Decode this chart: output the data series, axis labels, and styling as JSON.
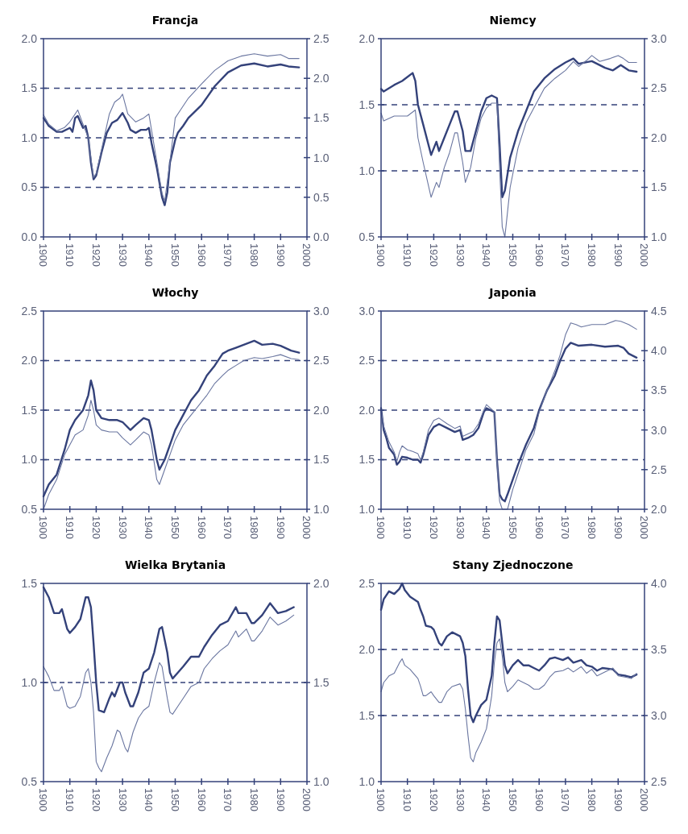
{
  "chart_data": [
    {
      "type": "line",
      "title": "Francja",
      "xlim": [
        1900,
        2000
      ],
      "xticks": [
        1900,
        1910,
        1920,
        1930,
        1940,
        1950,
        1960,
        1970,
        1980,
        1990,
        2000
      ],
      "ylim": [
        0,
        2
      ],
      "yticks": [
        {
          "value": 0,
          "label": "0.0"
        },
        0.5,
        {
          "value": 1,
          "label": "1.0"
        },
        1.5,
        {
          "value": 2,
          "label": "2.0"
        }
      ],
      "y2lim": [
        0,
        2.5
      ],
      "y2ticks": [
        {
          "value": 0,
          "label": "0.0"
        },
        0.5,
        {
          "value": 1,
          "label": "1.0"
        },
        1.5,
        {
          "value": 2,
          "label": "2.0"
        },
        2.5
      ],
      "grid": "y",
      "series": [
        {
          "color": "#34427a",
          "x": [
            1900,
            1902,
            1905,
            1907,
            1910,
            1911,
            1912,
            1913,
            1915,
            1916,
            1917,
            1918,
            1919,
            1920,
            1922,
            1924,
            1926,
            1928,
            1930,
            1932,
            1933,
            1935,
            1937,
            1939,
            1940,
            1941,
            1943,
            1945,
            1946,
            1947,
            1948,
            1950,
            1951,
            1953,
            1955,
            1960,
            1965,
            1970,
            1975,
            1980,
            1985,
            1990,
            1993,
            1997
          ],
          "values": [
            1.2,
            1.12,
            1.06,
            1.06,
            1.1,
            1.06,
            1.2,
            1.22,
            1.1,
            1.12,
            1,
            0.75,
            0.58,
            0.62,
            0.85,
            1.05,
            1.15,
            1.18,
            1.25,
            1.15,
            1.08,
            1.05,
            1.08,
            1.08,
            1.1,
            0.95,
            0.7,
            0.4,
            0.32,
            0.45,
            0.75,
            0.98,
            1.05,
            1.12,
            1.2,
            1.33,
            1.52,
            1.66,
            1.73,
            1.75,
            1.72,
            1.74,
            1.72,
            1.71
          ]
        },
        {
          "color": "#6a76a0",
          "axis": "y2",
          "x": [
            1900,
            1902,
            1905,
            1908,
            1910,
            1912,
            1913,
            1915,
            1917,
            1919,
            1920,
            1922,
            1925,
            1927,
            1929,
            1930,
            1932,
            1935,
            1938,
            1940,
            1941,
            1943,
            1945,
            1946,
            1948,
            1950,
            1952,
            1955,
            1960,
            1965,
            1970,
            1975,
            1980,
            1985,
            1990,
            1993,
            1997
          ],
          "values": [
            1.54,
            1.42,
            1.34,
            1.38,
            1.45,
            1.55,
            1.6,
            1.42,
            1.25,
            0.75,
            0.8,
            1.1,
            1.55,
            1.7,
            1.75,
            1.8,
            1.55,
            1.45,
            1.5,
            1.55,
            1.35,
            0.95,
            0.55,
            0.45,
            0.95,
            1.5,
            1.6,
            1.75,
            1.93,
            2.1,
            2.22,
            2.28,
            2.31,
            2.28,
            2.3,
            2.25,
            2.25
          ]
        }
      ]
    },
    {
      "type": "line",
      "title": "Niemcy",
      "xlim": [
        1900,
        2000
      ],
      "xticks": [
        1900,
        1910,
        1920,
        1930,
        1940,
        1950,
        1960,
        1970,
        1980,
        1990,
        2000
      ],
      "ylim": [
        0.5,
        2
      ],
      "yticks": [
        0.5,
        {
          "value": 1,
          "label": "1.0"
        },
        1.5,
        {
          "value": 2,
          "label": "2.0"
        }
      ],
      "y2lim": [
        1,
        3
      ],
      "y2ticks": [
        {
          "value": 1,
          "label": "1.0"
        },
        1.5,
        {
          "value": 2,
          "label": "2.0"
        },
        2.5,
        {
          "value": 3,
          "label": "3.0"
        }
      ],
      "grid": "y",
      "series": [
        {
          "color": "#34427a",
          "x": [
            1900,
            1901,
            1905,
            1908,
            1912,
            1913,
            1914,
            1916,
            1919,
            1921,
            1922,
            1924,
            1926,
            1928,
            1929,
            1931,
            1932,
            1934,
            1936,
            1938,
            1940,
            1942,
            1944,
            1945,
            1946,
            1947,
            1949,
            1952,
            1955,
            1958,
            1962,
            1966,
            1970,
            1973,
            1975,
            1980,
            1985,
            1988,
            1991,
            1994,
            1997
          ],
          "values": [
            1.62,
            1.6,
            1.65,
            1.68,
            1.74,
            1.68,
            1.5,
            1.35,
            1.12,
            1.22,
            1.15,
            1.25,
            1.35,
            1.45,
            1.45,
            1.3,
            1.15,
            1.15,
            1.3,
            1.45,
            1.55,
            1.57,
            1.55,
            1.2,
            0.8,
            0.85,
            1.1,
            1.3,
            1.45,
            1.6,
            1.7,
            1.77,
            1.82,
            1.85,
            1.81,
            1.83,
            1.78,
            1.76,
            1.8,
            1.76,
            1.75
          ]
        },
        {
          "color": "#6a76a0",
          "axis": "y2",
          "x": [
            1900,
            1901,
            1905,
            1910,
            1913,
            1914,
            1916,
            1919,
            1921,
            1922,
            1924,
            1926,
            1928,
            1929,
            1931,
            1932,
            1934,
            1936,
            1938,
            1940,
            1942,
            1944,
            1945,
            1946,
            1947,
            1949,
            1952,
            1955,
            1958,
            1962,
            1966,
            1970,
            1973,
            1975,
            1978,
            1980,
            1983,
            1987,
            1990,
            1992,
            1994,
            1997
          ],
          "values": [
            2.25,
            2.17,
            2.22,
            2.22,
            2.28,
            2,
            1.75,
            1.4,
            1.55,
            1.5,
            1.7,
            1.85,
            2.05,
            2.05,
            1.75,
            1.55,
            1.7,
            2,
            2.2,
            2.3,
            2.35,
            2.35,
            1.7,
            1.1,
            1,
            1.5,
            1.9,
            2.15,
            2.3,
            2.5,
            2.6,
            2.68,
            2.77,
            2.72,
            2.78,
            2.83,
            2.77,
            2.8,
            2.83,
            2.8,
            2.76,
            2.76
          ]
        }
      ]
    },
    {
      "type": "line",
      "title": "Włochy",
      "xlim": [
        1900,
        2000
      ],
      "xticks": [
        1900,
        1910,
        1920,
        1930,
        1940,
        1950,
        1960,
        1970,
        1980,
        1990,
        2000
      ],
      "ylim": [
        0.5,
        2.5
      ],
      "yticks": [
        0.5,
        {
          "value": 1,
          "label": "1.0"
        },
        1.5,
        {
          "value": 2,
          "label": "2.0"
        },
        2.5
      ],
      "y2lim": [
        1,
        3
      ],
      "y2ticks": [
        {
          "value": 1,
          "label": "1.0"
        },
        1.5,
        {
          "value": 2,
          "label": "2.0"
        },
        2.5,
        {
          "value": 3,
          "label": "3.0"
        }
      ],
      "grid": "y",
      "series": [
        {
          "color": "#34427a",
          "x": [
            1900,
            1902,
            1905,
            1908,
            1910,
            1912,
            1915,
            1917,
            1918,
            1919,
            1920,
            1922,
            1925,
            1928,
            1930,
            1933,
            1935,
            1938,
            1940,
            1941,
            1943,
            1944,
            1946,
            1948,
            1950,
            1953,
            1956,
            1959,
            1962,
            1965,
            1968,
            1970,
            1973,
            1976,
            1980,
            1983,
            1987,
            1990,
            1994,
            1997
          ],
          "values": [
            0.63,
            0.75,
            0.85,
            1.1,
            1.3,
            1.4,
            1.5,
            1.65,
            1.8,
            1.7,
            1.5,
            1.42,
            1.4,
            1.4,
            1.38,
            1.3,
            1.35,
            1.42,
            1.4,
            1.3,
            1,
            0.9,
            1,
            1.15,
            1.3,
            1.45,
            1.6,
            1.7,
            1.85,
            1.95,
            2.07,
            2.1,
            2.13,
            2.16,
            2.2,
            2.16,
            2.17,
            2.15,
            2.1,
            2.08
          ]
        },
        {
          "color": "#6a76a0",
          "axis": "y2",
          "x": [
            1900,
            1902,
            1905,
            1908,
            1910,
            1912,
            1915,
            1917,
            1918,
            1919,
            1920,
            1922,
            1925,
            1928,
            1930,
            1933,
            1935,
            1938,
            1940,
            1941,
            1943,
            1944,
            1946,
            1948,
            1950,
            1953,
            1956,
            1959,
            1962,
            1965,
            1968,
            1970,
            1973,
            1976,
            1980,
            1983,
            1987,
            1990,
            1994,
            1997
          ],
          "values": [
            1,
            1.15,
            1.3,
            1.55,
            1.65,
            1.75,
            1.8,
            1.95,
            2.1,
            2,
            1.85,
            1.8,
            1.78,
            1.78,
            1.72,
            1.65,
            1.7,
            1.78,
            1.75,
            1.65,
            1.3,
            1.25,
            1.4,
            1.55,
            1.7,
            1.85,
            1.95,
            2.05,
            2.15,
            2.27,
            2.35,
            2.4,
            2.45,
            2.5,
            2.53,
            2.52,
            2.54,
            2.56,
            2.52,
            2.51
          ]
        }
      ]
    },
    {
      "type": "line",
      "title": "Japonia",
      "xlim": [
        1900,
        2000
      ],
      "xticks": [
        1900,
        1910,
        1920,
        1930,
        1940,
        1950,
        1960,
        1970,
        1980,
        1990,
        2000
      ],
      "ylim": [
        1,
        3
      ],
      "yticks": [
        {
          "value": 1,
          "label": "1.0"
        },
        1.5,
        {
          "value": 2,
          "label": "2.0"
        },
        2.5,
        {
          "value": 3,
          "label": "3.0"
        }
      ],
      "y2lim": [
        2,
        4.5
      ],
      "y2ticks": [
        {
          "value": 2,
          "label": "2.0"
        },
        2.5,
        {
          "value": 3,
          "label": "3.0"
        },
        3.5,
        {
          "value": 4,
          "label": "4.0"
        },
        4.5
      ],
      "grid": "y",
      "series": [
        {
          "color": "#34427a",
          "x": [
            1900,
            1901,
            1902,
            1903,
            1905,
            1906,
            1907,
            1908,
            1910,
            1912,
            1914,
            1915,
            1916,
            1918,
            1920,
            1922,
            1925,
            1928,
            1930,
            1931,
            1933,
            1935,
            1937,
            1939,
            1940,
            1943,
            1944,
            1945,
            1946,
            1947,
            1948,
            1950,
            1952,
            1955,
            1958,
            1960,
            1963,
            1966,
            1968,
            1970,
            1972,
            1975,
            1980,
            1985,
            1990,
            1992,
            1994,
            1997
          ],
          "values": [
            2.02,
            1.8,
            1.72,
            1.62,
            1.55,
            1.45,
            1.48,
            1.53,
            1.52,
            1.5,
            1.5,
            1.47,
            1.55,
            1.75,
            1.83,
            1.86,
            1.82,
            1.78,
            1.8,
            1.7,
            1.72,
            1.75,
            1.82,
            1.98,
            2.02,
            1.98,
            1.5,
            1.15,
            1.1,
            1.08,
            1.15,
            1.3,
            1.45,
            1.65,
            1.82,
            2,
            2.2,
            2.35,
            2.5,
            2.62,
            2.68,
            2.65,
            2.66,
            2.64,
            2.65,
            2.63,
            2.57,
            2.53
          ]
        },
        {
          "color": "#6a76a0",
          "axis": "y2",
          "x": [
            1900,
            1901,
            1903,
            1905,
            1906,
            1907,
            1908,
            1910,
            1912,
            1914,
            1915,
            1916,
            1918,
            1920,
            1922,
            1925,
            1928,
            1930,
            1931,
            1933,
            1935,
            1937,
            1939,
            1940,
            1943,
            1944,
            1945,
            1946,
            1948,
            1950,
            1952,
            1955,
            1958,
            1960,
            1963,
            1966,
            1968,
            1970,
            1972,
            1974,
            1976,
            1980,
            1985,
            1989,
            1991,
            1994,
            1997
          ],
          "values": [
            3.25,
            3.05,
            2.85,
            2.72,
            2.6,
            2.72,
            2.8,
            2.75,
            2.73,
            2.7,
            2.62,
            2.72,
            3,
            3.12,
            3.15,
            3.08,
            3.02,
            3.05,
            2.92,
            2.95,
            2.98,
            3.08,
            3.25,
            3.32,
            3.23,
            2.6,
            2.1,
            2,
            2,
            2.25,
            2.45,
            2.75,
            2.95,
            3.22,
            3.5,
            3.75,
            3.95,
            4.2,
            4.35,
            4.33,
            4.3,
            4.33,
            4.33,
            4.38,
            4.37,
            4.33,
            4.27
          ]
        }
      ]
    },
    {
      "type": "line",
      "title": "Wielka Brytania",
      "xlim": [
        1900,
        2000
      ],
      "xticks": [
        1900,
        1910,
        1920,
        1930,
        1940,
        1950,
        1960,
        1970,
        1980,
        1990,
        2000
      ],
      "ylim": [
        0.5,
        1.5
      ],
      "yticks": [
        0.5,
        {
          "value": 1,
          "label": "1.0"
        },
        1.5
      ],
      "y2lim": [
        1,
        2
      ],
      "y2ticks": [
        {
          "value": 1,
          "label": "1.0"
        },
        1.5,
        {
          "value": 2,
          "label": "2.0"
        }
      ],
      "ref_lines": [
        {
          "axis": "y",
          "value": 1,
          "line_style": "dashed"
        }
      ],
      "series": [
        {
          "color": "#34427a",
          "x": [
            1900,
            1902,
            1904,
            1906,
            1907,
            1909,
            1910,
            1912,
            1914,
            1916,
            1917,
            1918,
            1919,
            1920,
            1921,
            1923,
            1925,
            1926,
            1927,
            1929,
            1930,
            1931,
            1933,
            1934,
            1936,
            1938,
            1940,
            1942,
            1944,
            1945,
            1947,
            1948,
            1949,
            1951,
            1953,
            1956,
            1959,
            1961,
            1964,
            1967,
            1970,
            1973,
            1974,
            1977,
            1979,
            1980,
            1983,
            1986,
            1989,
            1992,
            1995
          ],
          "values": [
            1.48,
            1.43,
            1.35,
            1.35,
            1.37,
            1.27,
            1.25,
            1.28,
            1.32,
            1.43,
            1.43,
            1.38,
            1.2,
            1,
            0.86,
            0.85,
            0.92,
            0.95,
            0.93,
            1,
            1,
            0.95,
            0.88,
            0.88,
            0.95,
            1.05,
            1.07,
            1.15,
            1.27,
            1.28,
            1.15,
            1.05,
            1.02,
            1.05,
            1.08,
            1.13,
            1.13,
            1.18,
            1.24,
            1.29,
            1.31,
            1.38,
            1.35,
            1.35,
            1.3,
            1.3,
            1.34,
            1.4,
            1.35,
            1.36,
            1.38
          ]
        },
        {
          "color": "#6a76a0",
          "axis": "y2",
          "x": [
            1900,
            1902,
            1904,
            1906,
            1907,
            1909,
            1910,
            1912,
            1914,
            1916,
            1917,
            1918,
            1919,
            1920,
            1921,
            1922,
            1924,
            1926,
            1928,
            1929,
            1931,
            1932,
            1934,
            1936,
            1938,
            1940,
            1942,
            1944,
            1945,
            1947,
            1948,
            1949,
            1951,
            1953,
            1956,
            1959,
            1961,
            1964,
            1967,
            1970,
            1973,
            1974,
            1977,
            1979,
            1980,
            1983,
            1986,
            1989,
            1992,
            1995
          ],
          "values": [
            1.58,
            1.53,
            1.46,
            1.46,
            1.48,
            1.38,
            1.37,
            1.38,
            1.43,
            1.55,
            1.57,
            1.5,
            1.35,
            1.1,
            1.07,
            1.05,
            1.12,
            1.18,
            1.26,
            1.25,
            1.17,
            1.15,
            1.25,
            1.32,
            1.36,
            1.38,
            1.5,
            1.6,
            1.58,
            1.42,
            1.35,
            1.34,
            1.38,
            1.42,
            1.48,
            1.5,
            1.57,
            1.62,
            1.66,
            1.69,
            1.76,
            1.73,
            1.77,
            1.71,
            1.71,
            1.76,
            1.83,
            1.79,
            1.81,
            1.84
          ]
        }
      ]
    },
    {
      "type": "line",
      "title": "Stany Zjednoczone",
      "xlim": [
        1900,
        2000
      ],
      "xticks": [
        1900,
        1910,
        1920,
        1930,
        1940,
        1950,
        1960,
        1970,
        1980,
        1990,
        2000
      ],
      "ylim": [
        1,
        2.5
      ],
      "yticks": [
        {
          "value": 1,
          "label": "1.0"
        },
        1.5,
        {
          "value": 2,
          "label": "2.0"
        },
        2.5
      ],
      "y2lim": [
        2.5,
        4
      ],
      "y2ticks": [
        2.5,
        {
          "value": 3,
          "label": "3.0"
        },
        3.5,
        {
          "value": 4,
          "label": "4.0"
        }
      ],
      "grid": "y",
      "series": [
        {
          "color": "#34427a",
          "x": [
            1900,
            1901,
            1903,
            1905,
            1907,
            1908,
            1909,
            1911,
            1914,
            1915,
            1916,
            1917,
            1919,
            1920,
            1922,
            1923,
            1925,
            1927,
            1930,
            1931,
            1932,
            1933,
            1934,
            1935,
            1936,
            1938,
            1940,
            1942,
            1943,
            1944,
            1945,
            1946,
            1947,
            1948,
            1950,
            1952,
            1954,
            1956,
            1958,
            1960,
            1962,
            1964,
            1966,
            1969,
            1971,
            1973,
            1976,
            1978,
            1980,
            1982,
            1984,
            1988,
            1990,
            1993,
            1995,
            1997
          ],
          "values": [
            2.3,
            2.38,
            2.44,
            2.42,
            2.46,
            2.5,
            2.45,
            2.4,
            2.36,
            2.3,
            2.25,
            2.18,
            2.17,
            2.15,
            2.05,
            2.03,
            2.1,
            2.13,
            2.1,
            2.05,
            1.95,
            1.7,
            1.5,
            1.45,
            1.5,
            1.58,
            1.62,
            1.8,
            2.05,
            2.25,
            2.22,
            2.05,
            1.88,
            1.82,
            1.88,
            1.92,
            1.88,
            1.88,
            1.86,
            1.84,
            1.88,
            1.93,
            1.94,
            1.92,
            1.94,
            1.9,
            1.92,
            1.88,
            1.87,
            1.84,
            1.86,
            1.85,
            1.81,
            1.8,
            1.79,
            1.81
          ]
        },
        {
          "color": "#6a76a0",
          "axis": "y2",
          "x": [
            1900,
            1901,
            1903,
            1905,
            1907,
            1908,
            1909,
            1911,
            1914,
            1915,
            1916,
            1917,
            1919,
            1920,
            1922,
            1923,
            1925,
            1927,
            1930,
            1931,
            1932,
            1933,
            1934,
            1935,
            1936,
            1938,
            1940,
            1942,
            1943,
            1944,
            1945,
            1946,
            1947,
            1948,
            1950,
            1952,
            1954,
            1956,
            1958,
            1960,
            1962,
            1964,
            1966,
            1969,
            1971,
            1973,
            1976,
            1978,
            1980,
            1982,
            1984,
            1988,
            1990,
            1993,
            1995,
            1997
          ],
          "values": [
            3.18,
            3.25,
            3.3,
            3.32,
            3.4,
            3.43,
            3.38,
            3.35,
            3.28,
            3.22,
            3.15,
            3.15,
            3.18,
            3.15,
            3.1,
            3.1,
            3.18,
            3.22,
            3.24,
            3.2,
            3.05,
            2.85,
            2.68,
            2.65,
            2.72,
            2.8,
            2.9,
            3.15,
            3.4,
            3.55,
            3.58,
            3.45,
            3.25,
            3.18,
            3.22,
            3.27,
            3.25,
            3.23,
            3.2,
            3.2,
            3.23,
            3.29,
            3.33,
            3.34,
            3.36,
            3.33,
            3.37,
            3.32,
            3.35,
            3.3,
            3.32,
            3.36,
            3.3,
            3.29,
            3.28,
            3.32
          ]
        }
      ]
    }
  ]
}
